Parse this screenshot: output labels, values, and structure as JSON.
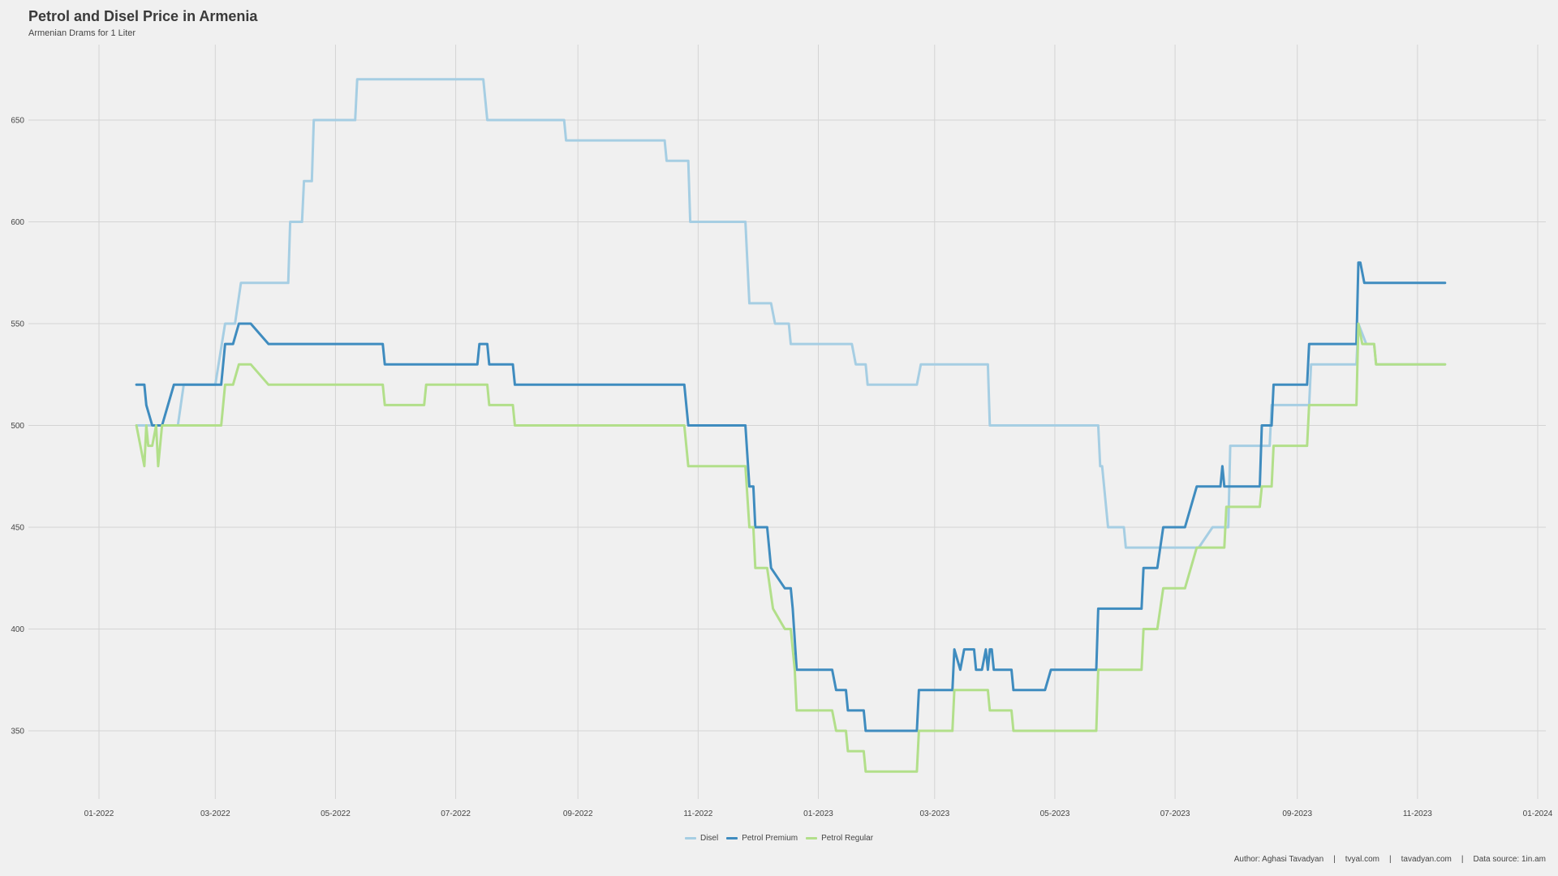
{
  "chart_data": {
    "type": "line",
    "title": "Petrol and Disel Price in Armenia",
    "subtitle": "Armenian Drams for 1 Liter",
    "xlabel": "",
    "ylabel": "",
    "x_range": [
      "2022-01-01",
      "2024-01-01"
    ],
    "ylim": [
      310,
      690
    ],
    "y_ticks": [
      350,
      400,
      450,
      500,
      550,
      600,
      650
    ],
    "x_ticks": [
      {
        "date": "2022-01-01",
        "label": "01-2022"
      },
      {
        "date": "2022-03-01",
        "label": "03-2022"
      },
      {
        "date": "2022-05-01",
        "label": "05-2022"
      },
      {
        "date": "2022-07-01",
        "label": "07-2022"
      },
      {
        "date": "2022-09-01",
        "label": "09-2022"
      },
      {
        "date": "2022-11-01",
        "label": "11-2022"
      },
      {
        "date": "2023-01-01",
        "label": "01-2023"
      },
      {
        "date": "2023-03-01",
        "label": "03-2023"
      },
      {
        "date": "2023-05-01",
        "label": "05-2023"
      },
      {
        "date": "2023-07-01",
        "label": "07-2023"
      },
      {
        "date": "2023-09-01",
        "label": "09-2023"
      },
      {
        "date": "2023-11-01",
        "label": "11-2023"
      },
      {
        "date": "2024-01-01",
        "label": "01-2024"
      }
    ],
    "grid": true,
    "legend_position": "bottom",
    "series": [
      {
        "name": "Disel",
        "color": "#a6cee3",
        "points": [
          [
            "2022-01-20",
            500
          ],
          [
            "2022-02-10",
            500
          ],
          [
            "2022-02-13",
            520
          ],
          [
            "2022-03-01",
            520
          ],
          [
            "2022-03-06",
            550
          ],
          [
            "2022-03-11",
            550
          ],
          [
            "2022-03-14",
            570
          ],
          [
            "2022-04-07",
            570
          ],
          [
            "2022-04-08",
            600
          ],
          [
            "2022-04-14",
            600
          ],
          [
            "2022-04-15",
            620
          ],
          [
            "2022-04-19",
            620
          ],
          [
            "2022-04-20",
            650
          ],
          [
            "2022-05-11",
            650
          ],
          [
            "2022-05-12",
            670
          ],
          [
            "2022-07-15",
            670
          ],
          [
            "2022-07-17",
            650
          ],
          [
            "2022-08-25",
            650
          ],
          [
            "2022-08-26",
            640
          ],
          [
            "2022-10-15",
            640
          ],
          [
            "2022-10-16",
            630
          ],
          [
            "2022-10-27",
            630
          ],
          [
            "2022-10-28",
            600
          ],
          [
            "2022-11-25",
            600
          ],
          [
            "2022-11-27",
            560
          ],
          [
            "2022-12-08",
            560
          ],
          [
            "2022-12-10",
            550
          ],
          [
            "2022-12-17",
            550
          ],
          [
            "2022-12-18",
            540
          ],
          [
            "2023-01-18",
            540
          ],
          [
            "2023-01-20",
            530
          ],
          [
            "2023-01-25",
            530
          ],
          [
            "2023-01-26",
            520
          ],
          [
            "2023-02-20",
            520
          ],
          [
            "2023-02-22",
            530
          ],
          [
            "2023-03-28",
            530
          ],
          [
            "2023-03-29",
            500
          ],
          [
            "2023-05-23",
            500
          ],
          [
            "2023-05-24",
            480
          ],
          [
            "2023-05-25",
            480
          ],
          [
            "2023-05-28",
            450
          ],
          [
            "2023-06-05",
            450
          ],
          [
            "2023-06-06",
            440
          ],
          [
            "2023-07-13",
            440
          ],
          [
            "2023-07-20",
            450
          ],
          [
            "2023-07-28",
            450
          ],
          [
            "2023-07-29",
            490
          ],
          [
            "2023-08-18",
            490
          ],
          [
            "2023-08-19",
            510
          ],
          [
            "2023-09-07",
            510
          ],
          [
            "2023-09-08",
            530
          ],
          [
            "2023-10-01",
            530
          ],
          [
            "2023-10-02",
            550
          ],
          [
            "2023-10-06",
            540
          ],
          [
            "2023-10-10",
            540
          ],
          [
            "2023-10-11",
            530
          ],
          [
            "2023-11-15",
            530
          ]
        ]
      },
      {
        "name": "Petrol Premium",
        "color": "#3f8cbf",
        "points": [
          [
            "2022-01-20",
            520
          ],
          [
            "2022-01-24",
            520
          ],
          [
            "2022-01-25",
            510
          ],
          [
            "2022-01-28",
            500
          ],
          [
            "2022-02-02",
            500
          ],
          [
            "2022-02-08",
            520
          ],
          [
            "2022-03-04",
            520
          ],
          [
            "2022-03-06",
            540
          ],
          [
            "2022-03-10",
            540
          ],
          [
            "2022-03-13",
            550
          ],
          [
            "2022-03-19",
            550
          ],
          [
            "2022-03-28",
            540
          ],
          [
            "2022-05-25",
            540
          ],
          [
            "2022-05-26",
            530
          ],
          [
            "2022-07-12",
            530
          ],
          [
            "2022-07-13",
            540
          ],
          [
            "2022-07-17",
            540
          ],
          [
            "2022-07-18",
            530
          ],
          [
            "2022-07-30",
            530
          ],
          [
            "2022-07-31",
            520
          ],
          [
            "2022-10-25",
            520
          ],
          [
            "2022-10-27",
            500
          ],
          [
            "2022-11-25",
            500
          ],
          [
            "2022-11-27",
            470
          ],
          [
            "2022-11-29",
            470
          ],
          [
            "2022-11-30",
            450
          ],
          [
            "2022-12-06",
            450
          ],
          [
            "2022-12-08",
            430
          ],
          [
            "2022-12-15",
            420
          ],
          [
            "2022-12-18",
            420
          ],
          [
            "2022-12-19",
            410
          ],
          [
            "2022-12-21",
            380
          ],
          [
            "2023-01-08",
            380
          ],
          [
            "2023-01-10",
            370
          ],
          [
            "2023-01-15",
            370
          ],
          [
            "2023-01-16",
            360
          ],
          [
            "2023-01-24",
            360
          ],
          [
            "2023-01-25",
            350
          ],
          [
            "2023-02-20",
            350
          ],
          [
            "2023-02-21",
            370
          ],
          [
            "2023-03-10",
            370
          ],
          [
            "2023-03-11",
            390
          ],
          [
            "2023-03-14",
            380
          ],
          [
            "2023-03-16",
            390
          ],
          [
            "2023-03-21",
            390
          ],
          [
            "2023-03-22",
            380
          ],
          [
            "2023-03-25",
            380
          ],
          [
            "2023-03-27",
            390
          ],
          [
            "2023-03-28",
            380
          ],
          [
            "2023-03-29",
            390
          ],
          [
            "2023-03-30",
            390
          ],
          [
            "2023-03-31",
            380
          ],
          [
            "2023-04-09",
            380
          ],
          [
            "2023-04-10",
            370
          ],
          [
            "2023-04-26",
            370
          ],
          [
            "2023-04-29",
            380
          ],
          [
            "2023-05-22",
            380
          ],
          [
            "2023-05-23",
            410
          ],
          [
            "2023-06-14",
            410
          ],
          [
            "2023-06-15",
            430
          ],
          [
            "2023-06-22",
            430
          ],
          [
            "2023-06-25",
            450
          ],
          [
            "2023-07-06",
            450
          ],
          [
            "2023-07-12",
            470
          ],
          [
            "2023-07-24",
            470
          ],
          [
            "2023-07-25",
            480
          ],
          [
            "2023-07-26",
            470
          ],
          [
            "2023-08-13",
            470
          ],
          [
            "2023-08-14",
            500
          ],
          [
            "2023-08-19",
            500
          ],
          [
            "2023-08-20",
            520
          ],
          [
            "2023-09-06",
            520
          ],
          [
            "2023-09-07",
            540
          ],
          [
            "2023-10-01",
            540
          ],
          [
            "2023-10-02",
            580
          ],
          [
            "2023-10-03",
            580
          ],
          [
            "2023-10-05",
            570
          ],
          [
            "2023-11-15",
            570
          ]
        ]
      },
      {
        "name": "Petrol Regular",
        "color": "#b2df8a",
        "points": [
          [
            "2022-01-20",
            500
          ],
          [
            "2022-01-24",
            480
          ],
          [
            "2022-01-25",
            500
          ],
          [
            "2022-01-26",
            490
          ],
          [
            "2022-01-28",
            490
          ],
          [
            "2022-01-30",
            500
          ],
          [
            "2022-01-31",
            480
          ],
          [
            "2022-02-02",
            500
          ],
          [
            "2022-03-04",
            500
          ],
          [
            "2022-03-06",
            520
          ],
          [
            "2022-03-10",
            520
          ],
          [
            "2022-03-13",
            530
          ],
          [
            "2022-03-19",
            530
          ],
          [
            "2022-03-28",
            520
          ],
          [
            "2022-05-25",
            520
          ],
          [
            "2022-05-26",
            510
          ],
          [
            "2022-06-15",
            510
          ],
          [
            "2022-06-16",
            520
          ],
          [
            "2022-07-17",
            520
          ],
          [
            "2022-07-18",
            510
          ],
          [
            "2022-07-30",
            510
          ],
          [
            "2022-07-31",
            500
          ],
          [
            "2022-10-25",
            500
          ],
          [
            "2022-10-27",
            480
          ],
          [
            "2022-11-25",
            480
          ],
          [
            "2022-11-27",
            450
          ],
          [
            "2022-11-29",
            450
          ],
          [
            "2022-11-30",
            430
          ],
          [
            "2022-12-06",
            430
          ],
          [
            "2022-12-09",
            410
          ],
          [
            "2022-12-15",
            400
          ],
          [
            "2022-12-18",
            400
          ],
          [
            "2022-12-20",
            380
          ],
          [
            "2022-12-21",
            360
          ],
          [
            "2023-01-08",
            360
          ],
          [
            "2023-01-10",
            350
          ],
          [
            "2023-01-15",
            350
          ],
          [
            "2023-01-16",
            340
          ],
          [
            "2023-01-24",
            340
          ],
          [
            "2023-01-25",
            330
          ],
          [
            "2023-02-20",
            330
          ],
          [
            "2023-02-21",
            350
          ],
          [
            "2023-03-10",
            350
          ],
          [
            "2023-03-11",
            370
          ],
          [
            "2023-03-28",
            370
          ],
          [
            "2023-03-29",
            360
          ],
          [
            "2023-04-09",
            360
          ],
          [
            "2023-04-10",
            350
          ],
          [
            "2023-05-22",
            350
          ],
          [
            "2023-05-23",
            380
          ],
          [
            "2023-06-14",
            380
          ],
          [
            "2023-06-15",
            400
          ],
          [
            "2023-06-22",
            400
          ],
          [
            "2023-06-25",
            420
          ],
          [
            "2023-07-06",
            420
          ],
          [
            "2023-07-12",
            440
          ],
          [
            "2023-07-26",
            440
          ],
          [
            "2023-07-27",
            460
          ],
          [
            "2023-08-13",
            460
          ],
          [
            "2023-08-14",
            470
          ],
          [
            "2023-08-19",
            470
          ],
          [
            "2023-08-20",
            490
          ],
          [
            "2023-09-06",
            490
          ],
          [
            "2023-09-07",
            510
          ],
          [
            "2023-10-01",
            510
          ],
          [
            "2023-10-02",
            550
          ],
          [
            "2023-10-04",
            540
          ],
          [
            "2023-10-10",
            540
          ],
          [
            "2023-10-11",
            530
          ],
          [
            "2023-11-15",
            530
          ]
        ]
      }
    ]
  },
  "caption": {
    "author": "Author: Aghasi Tavadyan",
    "site1": "tvyal.com",
    "site2": "tavadyan.com",
    "source": "Data source: 1in.am",
    "separator": "|"
  }
}
